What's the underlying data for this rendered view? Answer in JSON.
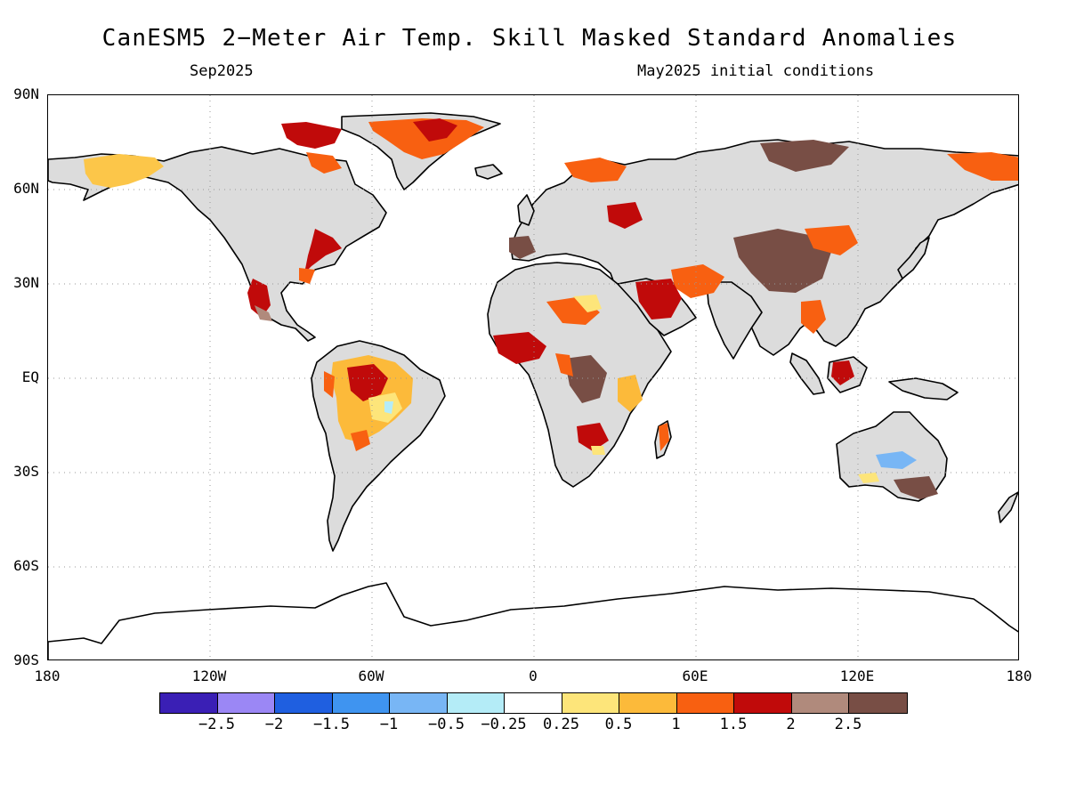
{
  "title": "CanESM5 2−Meter Air Temp. Skill Masked Standard Anomalies",
  "subtitle_left": "Sep2025",
  "subtitle_right": "May2025 initial conditions",
  "lat_labels": [
    "90N",
    "60N",
    "30N",
    "EQ",
    "30S",
    "60S",
    "90S"
  ],
  "lon_labels": [
    "180",
    "120W",
    "60W",
    "0",
    "60E",
    "120E",
    "180"
  ],
  "colorbar": {
    "colors": [
      "#3a1fb5",
      "#9b87f5",
      "#1f5fe0",
      "#3f94f0",
      "#78b6f5",
      "#b4ecf7",
      "#ffffff",
      "#fde57a",
      "#fcba3a",
      "#f86011",
      "#c00a0a",
      "#b08a7c",
      "#784e45"
    ],
    "labels": [
      "−2.5",
      "−2",
      "−1.5",
      "−1",
      "−0.5",
      "−0.25",
      "0.25",
      "0.5",
      "1",
      "1.5",
      "2",
      "2.5"
    ]
  },
  "land_masked_color": "#dcdcdc"
}
